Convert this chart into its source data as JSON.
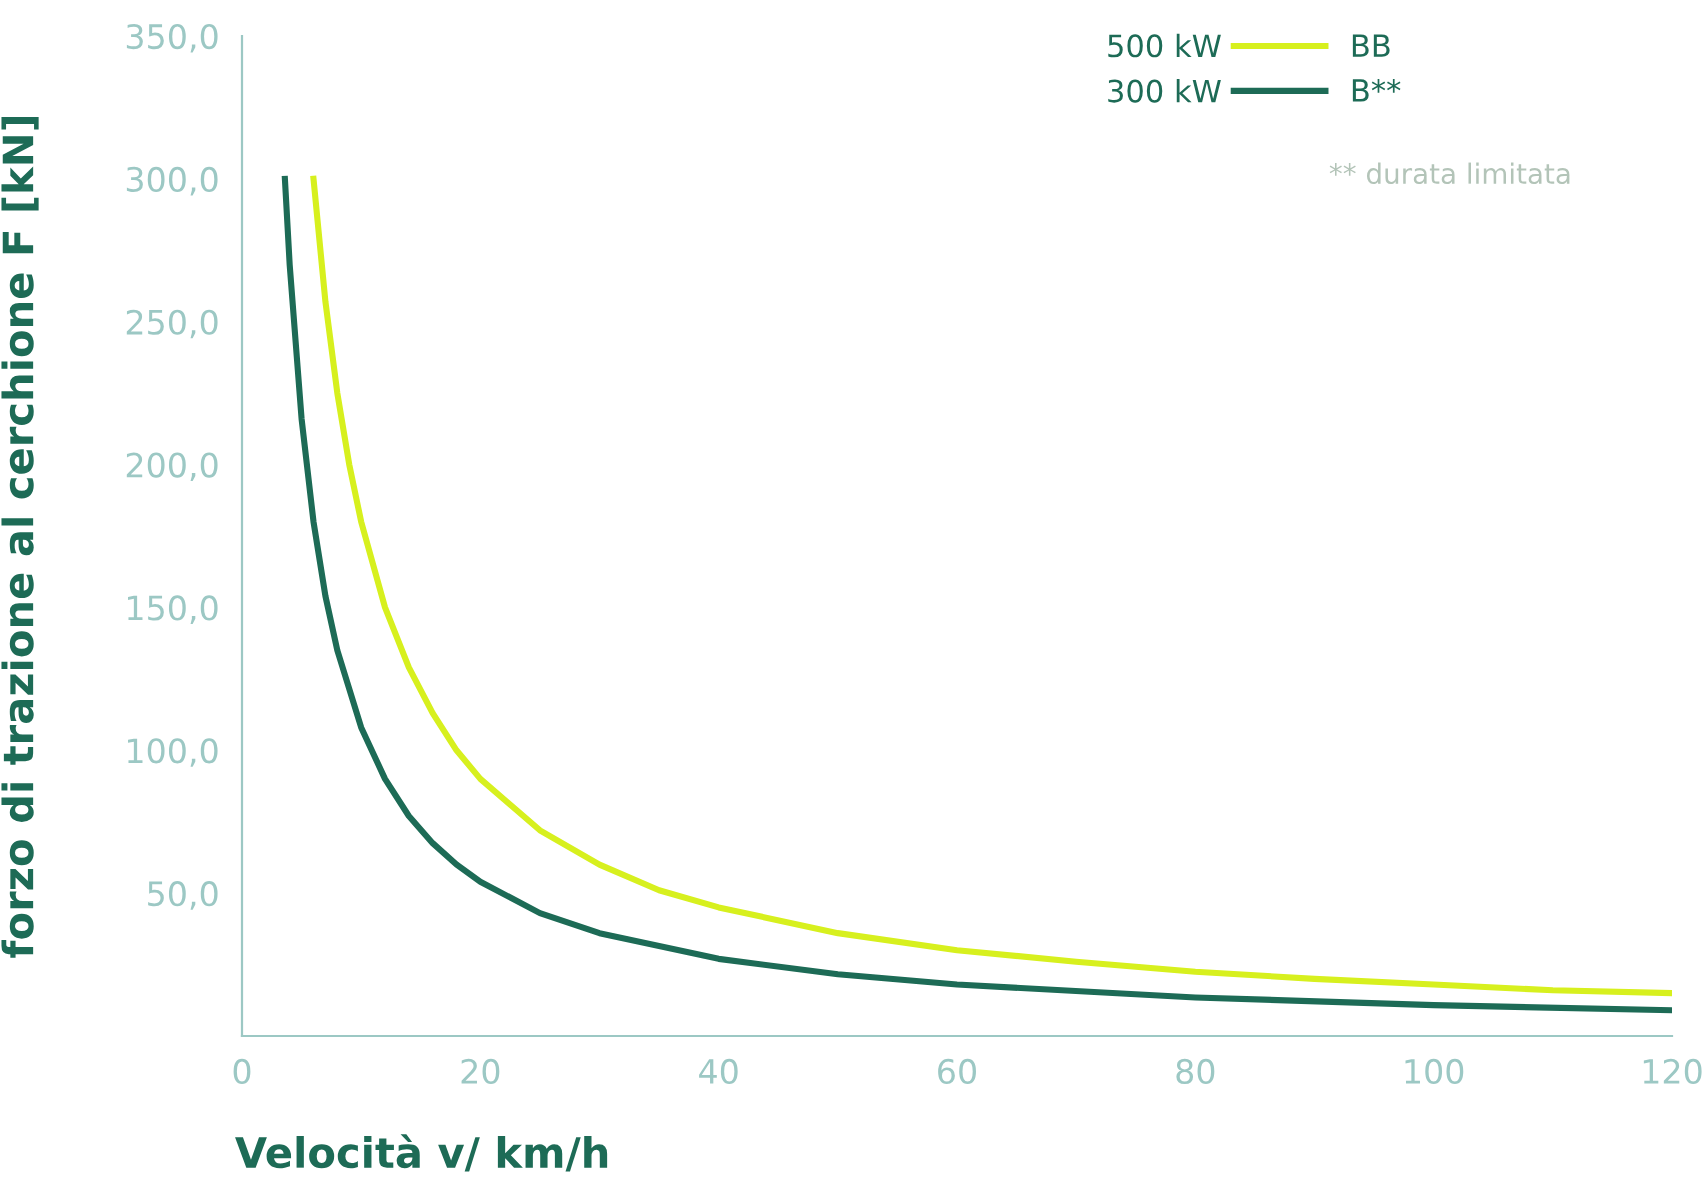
{
  "chart_data": {
    "type": "line",
    "xlabel": "Velocità v/ km/h",
    "ylabel": "forzo di trazione al cerchione F [kN]",
    "xlim": [
      0,
      120
    ],
    "xticks": [
      0,
      20,
      40,
      60,
      80,
      100,
      120
    ],
    "ylim": [
      0,
      350
    ],
    "yticks": [
      {
        "value": 50,
        "label": "50,0"
      },
      {
        "value": 100,
        "label": "100,0"
      },
      {
        "value": 150,
        "label": "150,0"
      },
      {
        "value": 200,
        "label": "200,0"
      },
      {
        "value": 250,
        "label": "250,0"
      },
      {
        "value": 300,
        "label": "300,0"
      },
      {
        "value": 350,
        "label": "350,0"
      }
    ],
    "grid": false,
    "legend": "top right",
    "marker": "none",
    "line_style": "solid",
    "annotations": [
      "500 kW",
      "300 kW",
      "** durata limitata"
    ],
    "series": [
      {
        "name": "BB",
        "color": "#d7f01e",
        "x": [
          6,
          7,
          8,
          9,
          10,
          12,
          14,
          16,
          18,
          20,
          25,
          30,
          35,
          40,
          50,
          60,
          70,
          80,
          90,
          100,
          110,
          120
        ],
        "values": [
          300,
          257,
          225,
          200,
          180,
          150,
          129,
          113,
          100,
          90,
          72,
          60,
          51,
          45,
          36,
          30,
          26,
          22.5,
          20,
          18,
          16,
          15
        ]
      },
      {
        "name": "B**",
        "color": "#1d6b56",
        "x": [
          3.6,
          4,
          5,
          6,
          7,
          8,
          10,
          12,
          14,
          16,
          18,
          20,
          25,
          30,
          40,
          50,
          60,
          80,
          100,
          120
        ],
        "values": [
          300,
          270,
          216,
          180,
          154,
          135,
          108,
          90,
          77,
          67.5,
          60,
          54,
          43,
          36,
          27,
          21.6,
          18,
          13.5,
          10.8,
          9
        ]
      }
    ]
  }
}
